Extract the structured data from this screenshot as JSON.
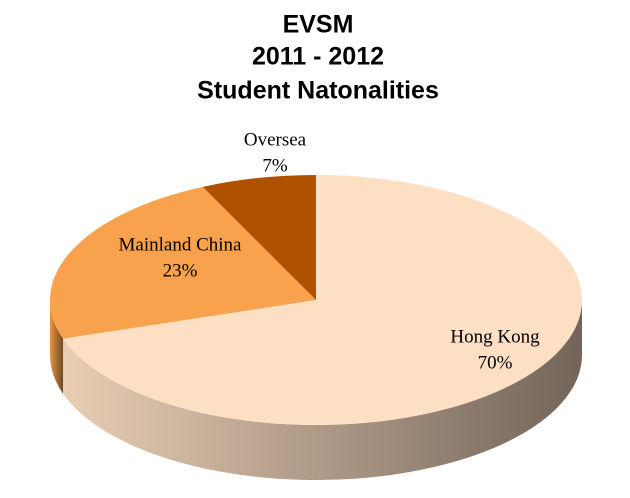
{
  "chart_data": {
    "type": "pie",
    "title": [
      "EVSM",
      "2011 - 2012",
      "Student Natonalities"
    ],
    "categories": [
      "Hong Kong",
      "Mainland China",
      "Oversea"
    ],
    "values": [
      70,
      23,
      7
    ],
    "value_labels": [
      "70%",
      "23%",
      "7%"
    ],
    "colors": [
      "#fddfc4",
      "#f9a24e",
      "#b05100"
    ]
  }
}
